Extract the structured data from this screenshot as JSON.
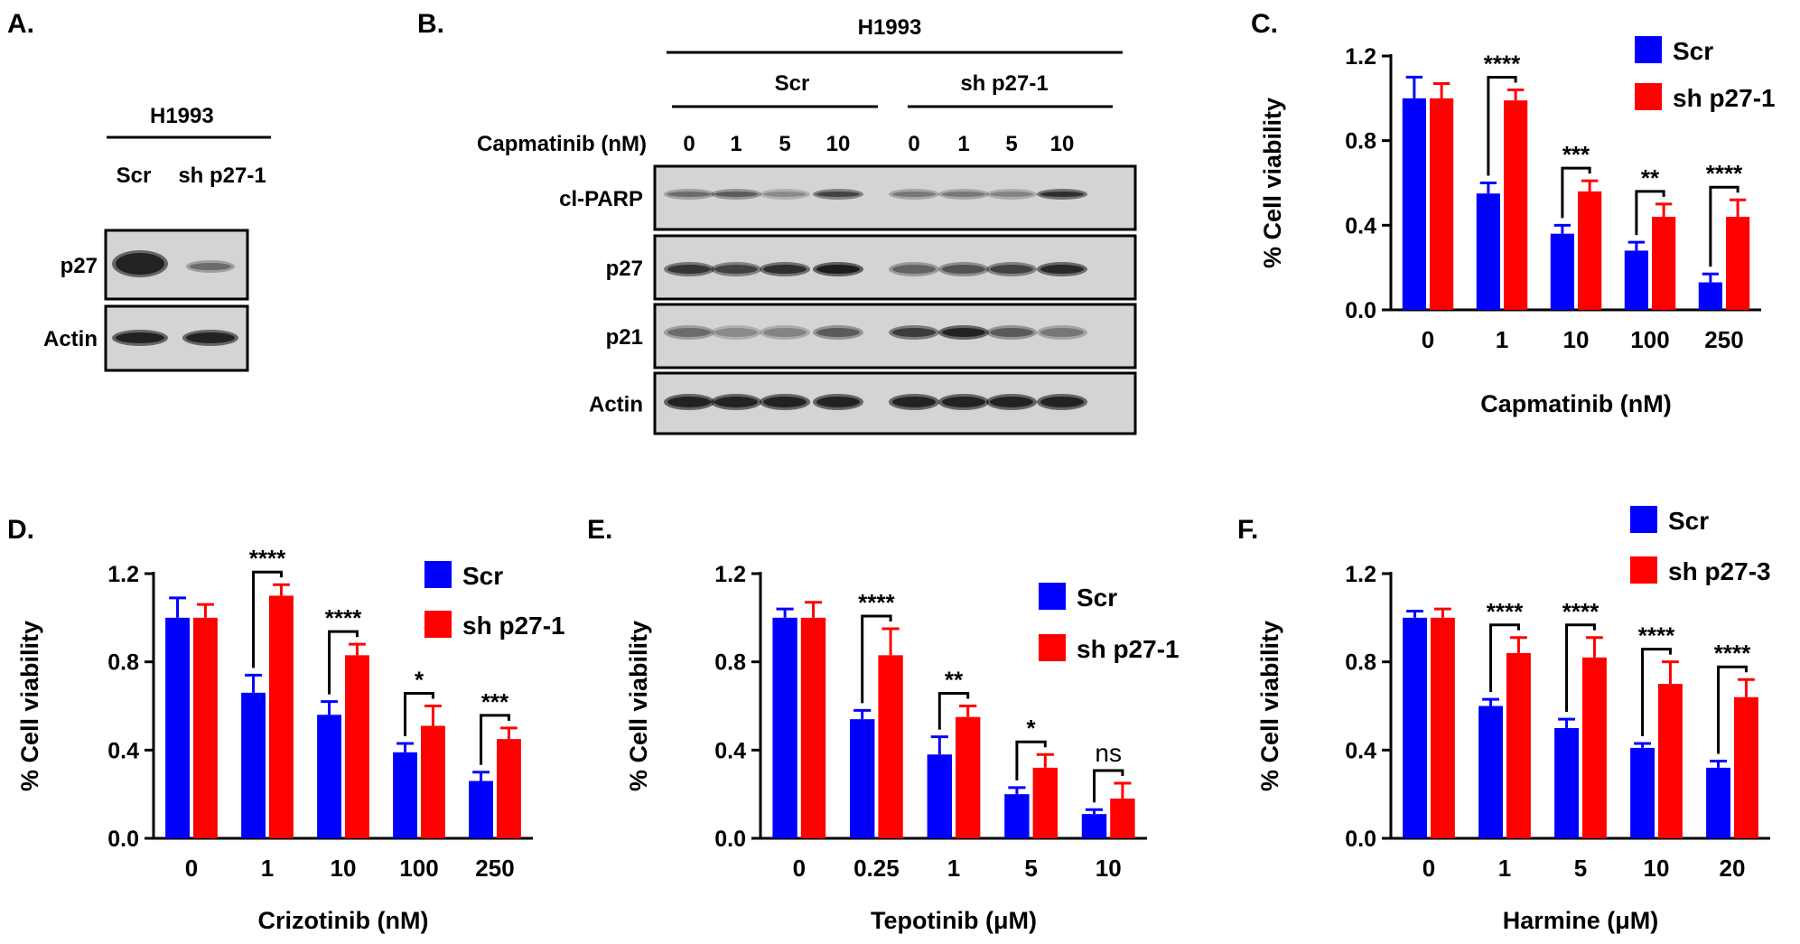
{
  "panels": {
    "a": {
      "letter": "A.",
      "cell_line": "H1993",
      "lanes": [
        "Scr",
        "sh p27-1"
      ],
      "blots": [
        "p27",
        "Actin"
      ]
    },
    "b": {
      "letter": "B.",
      "cell_line": "H1993",
      "groups": [
        "Scr",
        "sh p27-1"
      ],
      "dose_label": "Capmatinib (nM)",
      "doses": [
        "0",
        "1",
        "5",
        "10",
        "0",
        "1",
        "5",
        "10"
      ],
      "blots": [
        "cl-PARP",
        "p27",
        "p21",
        "Actin"
      ]
    }
  },
  "colors": {
    "scr": "#0000ff",
    "sh": "#ff0000"
  },
  "chart_data": [
    {
      "id": "C",
      "letter": "C.",
      "type": "bar",
      "xlabel": "Capmatinib (nM)",
      "ylabel": "% Cell viability",
      "ylim": [
        0,
        1.2
      ],
      "yticks": [
        "0.0",
        "0.4",
        "0.8",
        "1.2"
      ],
      "categories": [
        "0",
        "1",
        "10",
        "100",
        "250"
      ],
      "series": [
        {
          "name": "Scr",
          "values": [
            1.0,
            0.55,
            0.36,
            0.28,
            0.13
          ],
          "errors": [
            0.1,
            0.05,
            0.04,
            0.04,
            0.04
          ]
        },
        {
          "name": "sh p27-1",
          "values": [
            1.0,
            0.99,
            0.56,
            0.44,
            0.44
          ],
          "errors": [
            0.07,
            0.05,
            0.05,
            0.06,
            0.08
          ]
        }
      ],
      "significance": [
        "",
        "****",
        "***",
        "**",
        "****"
      ],
      "legend_position": "top-right"
    },
    {
      "id": "D",
      "letter": "D.",
      "type": "bar",
      "xlabel": "Crizotinib (nM)",
      "ylabel": "% Cell viability",
      "ylim": [
        0,
        1.2
      ],
      "yticks": [
        "0.0",
        "0.4",
        "0.8",
        "1.2"
      ],
      "categories": [
        "0",
        "1",
        "10",
        "100",
        "250"
      ],
      "series": [
        {
          "name": "Scr",
          "values": [
            1.0,
            0.66,
            0.56,
            0.39,
            0.26
          ],
          "errors": [
            0.09,
            0.08,
            0.06,
            0.04,
            0.04
          ]
        },
        {
          "name": "sh p27-1",
          "values": [
            1.0,
            1.1,
            0.83,
            0.51,
            0.45
          ],
          "errors": [
            0.06,
            0.05,
            0.05,
            0.09,
            0.05
          ]
        }
      ],
      "significance": [
        "",
        "****",
        "****",
        "*",
        "***"
      ],
      "legend_position": "top-right"
    },
    {
      "id": "E",
      "letter": "E.",
      "type": "bar",
      "xlabel": "Tepotinib (μM)",
      "ylabel": "% Cell viability",
      "ylim": [
        0,
        1.2
      ],
      "yticks": [
        "0.0",
        "0.4",
        "0.8",
        "1.2"
      ],
      "categories": [
        "0",
        "0.25",
        "1",
        "5",
        "10"
      ],
      "series": [
        {
          "name": "Scr",
          "values": [
            1.0,
            0.54,
            0.38,
            0.2,
            0.11
          ],
          "errors": [
            0.04,
            0.04,
            0.08,
            0.03,
            0.02
          ]
        },
        {
          "name": "sh p27-1",
          "values": [
            1.0,
            0.83,
            0.55,
            0.32,
            0.18
          ],
          "errors": [
            0.07,
            0.12,
            0.05,
            0.06,
            0.07
          ]
        }
      ],
      "significance": [
        "",
        "****",
        "**",
        "*",
        "ns"
      ],
      "legend_position": "top-right"
    },
    {
      "id": "F",
      "letter": "F.",
      "type": "bar",
      "xlabel": "Harmine (μM)",
      "ylabel": "% Cell viability",
      "ylim": [
        0,
        1.2
      ],
      "yticks": [
        "0.0",
        "0.4",
        "0.8",
        "1.2"
      ],
      "categories": [
        "0",
        "1",
        "5",
        "10",
        "20"
      ],
      "series": [
        {
          "name": "Scr",
          "values": [
            1.0,
            0.6,
            0.5,
            0.41,
            0.32
          ],
          "errors": [
            0.03,
            0.03,
            0.04,
            0.02,
            0.03
          ]
        },
        {
          "name": "sh p27-3",
          "values": [
            1.0,
            0.84,
            0.82,
            0.7,
            0.64
          ],
          "errors": [
            0.04,
            0.07,
            0.09,
            0.1,
            0.08
          ]
        }
      ],
      "significance": [
        "",
        "****",
        "****",
        "****",
        "****"
      ],
      "legend_position": "top-right"
    }
  ]
}
